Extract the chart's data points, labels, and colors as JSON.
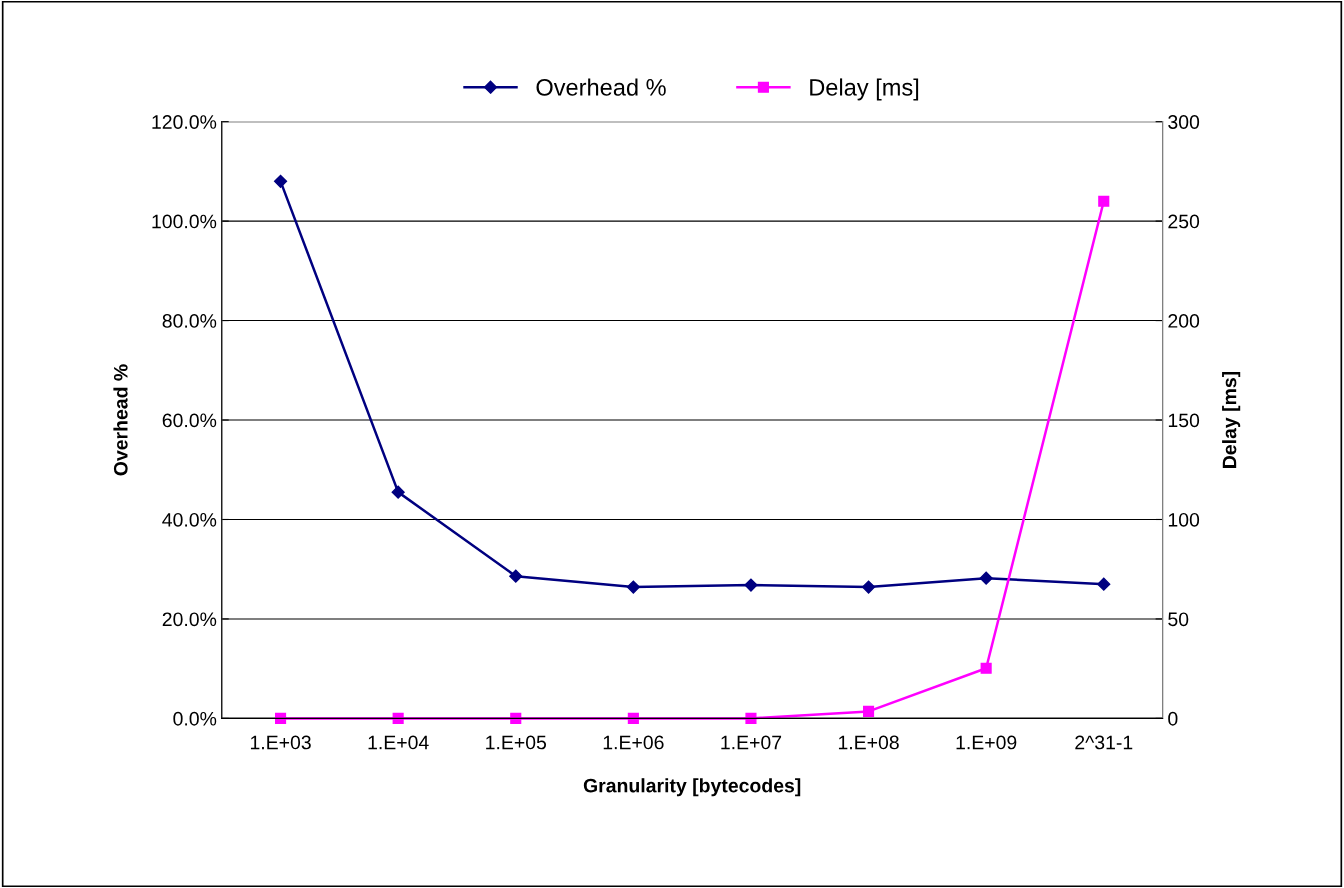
{
  "chart_data": {
    "type": "line",
    "xlabel": "Granularity [bytecodes]",
    "ylabel": "Overhead %",
    "y2label": "Delay [ms]",
    "categories": [
      "1.E+03",
      "1.E+04",
      "1.E+05",
      "1.E+06",
      "1.E+07",
      "1.E+08",
      "1.E+09",
      "2^31-1"
    ],
    "series": [
      {
        "name": "Overhead %",
        "color": "#000080",
        "marker": "diamond",
        "values": [
          108,
          45.5,
          28.6,
          26.4,
          26.8,
          26.4,
          28.2,
          27.0
        ]
      },
      {
        "name": "Delay [ms]",
        "color": "#ff00ff",
        "marker": "square",
        "axis": "y2",
        "values": [
          0,
          0,
          0,
          0,
          0,
          3.5,
          25.2,
          260
        ]
      }
    ],
    "ylim": [
      0,
      120
    ],
    "yticks": [
      {
        "value": 0,
        "label": "0.0%"
      },
      {
        "value": 20,
        "label": "20.0%"
      },
      {
        "value": 40,
        "label": "40.0%"
      },
      {
        "value": 60,
        "label": "60.0%"
      },
      {
        "value": 80,
        "label": "80.0%"
      },
      {
        "value": 100,
        "label": "100.0%"
      },
      {
        "value": 120,
        "label": "120.0%"
      }
    ],
    "y2lim": [
      0,
      300
    ],
    "y2ticks": [
      0,
      50,
      100,
      150,
      200,
      250,
      300
    ],
    "grid": "y",
    "legend": "top",
    "line_style": "solid"
  }
}
